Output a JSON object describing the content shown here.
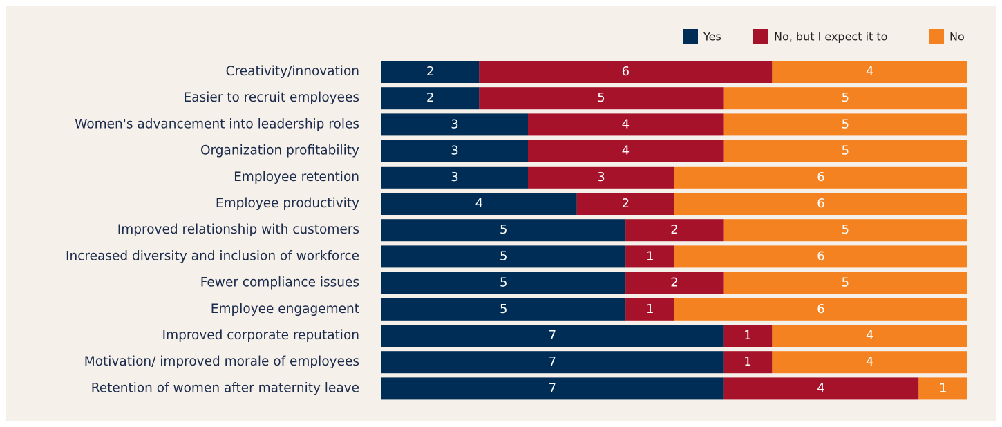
{
  "chart_data": {
    "type": "stacked_barh",
    "categories": [
      "Creativity/innovation",
      "Easier to recruit employees",
      "Women's advancement into leadership roles",
      "Organization profitability",
      "Employee retention",
      "Employee productivity",
      "Improved relationship with customers",
      "Increased diversity and inclusion of workforce",
      "Fewer compliance issues",
      "Employee engagement",
      "Improved corporate reputation",
      "Motivation/ improved morale of employees",
      "Retention of women after maternity leave"
    ],
    "series": [
      {
        "name": "Yes",
        "color": "#002d56",
        "values": [
          2,
          2,
          3,
          3,
          3,
          4,
          5,
          5,
          5,
          5,
          7,
          7,
          7
        ]
      },
      {
        "name": "No, but I expect it to",
        "color": "#a51229",
        "values": [
          6,
          5,
          4,
          4,
          3,
          2,
          2,
          1,
          2,
          1,
          1,
          1,
          4
        ]
      },
      {
        "name": "No",
        "color": "#f58220",
        "values": [
          4,
          5,
          5,
          5,
          6,
          6,
          5,
          6,
          5,
          6,
          4,
          4,
          1
        ]
      }
    ],
    "xlim": [
      0,
      12
    ],
    "legend": "top-right"
  }
}
